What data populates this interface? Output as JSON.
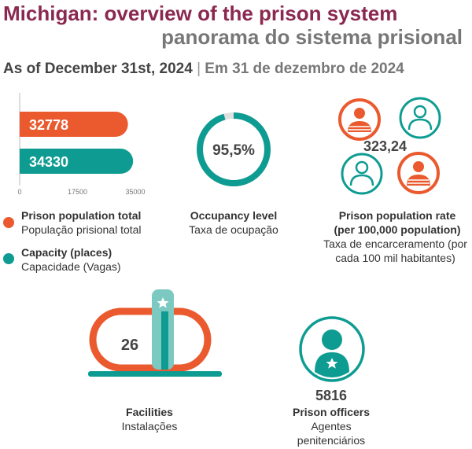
{
  "title_en": "Michigan: overview of the prison system",
  "title_pt": "panorama do sistema prisional",
  "date_en": "As of December 31st, 2024",
  "date_separator": "|",
  "date_pt": "Em 31 de dezembro de 2024",
  "colors": {
    "orange": "#ea5a2e",
    "teal": "#0e9c92",
    "maroon": "#8a2850",
    "light_teal": "#7cc9c2"
  },
  "chart_data": [
    {
      "type": "bar",
      "orientation": "horizontal",
      "categories": [
        "Prison population total",
        "Capacity (places)"
      ],
      "values": [
        32778,
        34330
      ],
      "value_labels": [
        "32778",
        "34330"
      ],
      "xlim": [
        0,
        35000
      ],
      "xticks": [
        "0",
        "17500",
        "35000"
      ],
      "colors": [
        "#ea5a2e",
        "#0e9c92"
      ],
      "legend": [
        {
          "en": "Prison population total",
          "pt": "População prisional total",
          "color": "#ea5a2e"
        },
        {
          "en": "Capacity (places)",
          "pt": "Capacidade (Vagas)",
          "color": "#0e9c92"
        }
      ]
    },
    {
      "type": "donut",
      "value": 95.5,
      "value_label": "95,5%",
      "label_en": "Occupancy level",
      "label_pt": "Taxa de ocupação"
    }
  ],
  "rate": {
    "value": "323,24",
    "label_en_1": "Prison population rate",
    "label_en_2": "(per 100,000 population)",
    "label_pt_1": "Taxa de encarceramento (por",
    "label_pt_2": "cada 100 mil habitantes)"
  },
  "facilities": {
    "value": "26",
    "label_en": "Facilities",
    "label_pt": "Instalações"
  },
  "officers": {
    "value": "5816",
    "label_en": "Prison officers",
    "label_pt_1": "Agentes",
    "label_pt_2": "penitenciários"
  }
}
